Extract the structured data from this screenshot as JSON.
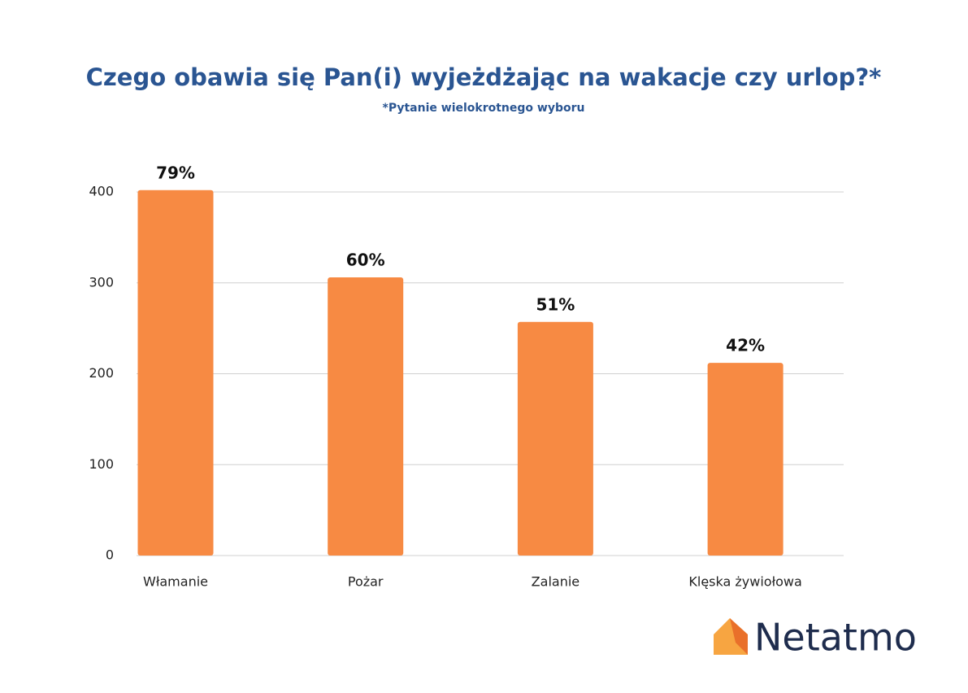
{
  "chart_data": {
    "type": "bar",
    "title": "Czego obawia się Pan(i) wyjeżdżając na wakacje czy urlop?*",
    "subtitle": "*Pytanie wielokrotnego wyboru",
    "categories": [
      "Włamanie",
      "Pożar",
      "Zalanie",
      "Klęska żywiołowa"
    ],
    "values": [
      402,
      306,
      257,
      212
    ],
    "annotations": [
      "79%",
      "60%",
      "51%",
      "42%"
    ],
    "color": "#f78a43",
    "ylim": [
      0,
      400
    ],
    "yticks": [
      0,
      100,
      200,
      300,
      400
    ],
    "grid": true
  },
  "logo": {
    "text": "Netatmo"
  }
}
